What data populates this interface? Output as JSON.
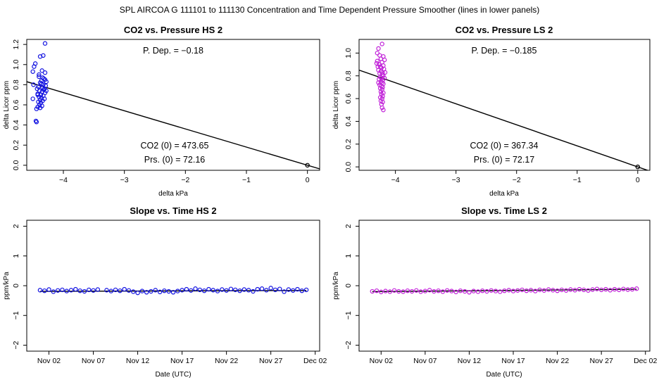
{
  "page_title": "SPL    AIRCOA G    111101 to 111130    Concentration and Time Dependent Pressure Smoother (lines in lower panels)",
  "colors": {
    "hs": "#1010e0",
    "ls": "#c020d8",
    "axis": "#000000",
    "line": "#000000"
  },
  "chart_data": [
    {
      "id": "co2_pressure_hs",
      "type": "scatter",
      "title": "CO2 vs. Pressure HS 2",
      "xlabel": "delta kPa",
      "ylabel": "delta Licor ppm",
      "xlim": [
        -4.6,
        0.2
      ],
      "ylim": [
        -0.05,
        1.25
      ],
      "xticks": [
        -4,
        -3,
        -2,
        -1,
        0
      ],
      "xtick_labels": [
        "−4",
        "−3",
        "−2",
        "−1",
        "0"
      ],
      "yticks": [
        0.0,
        0.2,
        0.4,
        0.6,
        0.8,
        1.0,
        1.2
      ],
      "ytick_labels": [
        "0.0",
        "0.2",
        "0.4",
        "0.6",
        "0.8",
        "1.0",
        "1.2"
      ],
      "color_key": "hs",
      "fit_line": {
        "x": [
          -4.6,
          0.2
        ],
        "y": [
          0.83,
          -0.036
        ]
      },
      "zero_point": {
        "x": 0,
        "y": 0
      },
      "annotations": {
        "pdep": "P. Dep. =  −0.18",
        "co2_0": "CO2 (0) =  473.65",
        "prs_0": "Prs. (0) =  72.16"
      },
      "points": [
        [
          -4.3,
          1.21
        ],
        [
          -4.33,
          1.09
        ],
        [
          -4.38,
          1.08
        ],
        [
          -4.46,
          1.01
        ],
        [
          -4.48,
          0.98
        ],
        [
          -4.5,
          0.93
        ],
        [
          -4.49,
          0.8
        ],
        [
          -4.5,
          0.66
        ],
        [
          -4.42,
          0.7
        ],
        [
          -4.44,
          0.56
        ],
        [
          -4.45,
          0.44
        ],
        [
          -4.44,
          0.43
        ],
        [
          -4.35,
          0.94
        ],
        [
          -4.3,
          0.92
        ],
        [
          -4.4,
          0.88
        ],
        [
          -4.32,
          0.86
        ],
        [
          -4.36,
          0.84
        ],
        [
          -4.28,
          0.83
        ],
        [
          -4.38,
          0.82
        ],
        [
          -4.33,
          0.8
        ],
        [
          -4.29,
          0.79
        ],
        [
          -4.41,
          0.78
        ],
        [
          -4.34,
          0.77
        ],
        [
          -4.31,
          0.76
        ],
        [
          -4.39,
          0.74
        ],
        [
          -4.35,
          0.73
        ],
        [
          -4.3,
          0.72
        ],
        [
          -4.42,
          0.71
        ],
        [
          -4.37,
          0.7
        ],
        [
          -4.33,
          0.69
        ],
        [
          -4.4,
          0.68
        ],
        [
          -4.36,
          0.67
        ],
        [
          -4.31,
          0.66
        ],
        [
          -4.38,
          0.65
        ],
        [
          -4.34,
          0.64
        ],
        [
          -4.41,
          0.63
        ],
        [
          -4.37,
          0.62
        ],
        [
          -4.39,
          0.6
        ],
        [
          -4.35,
          0.59
        ],
        [
          -4.42,
          0.58
        ],
        [
          -4.38,
          0.57
        ],
        [
          -4.32,
          0.75
        ],
        [
          -4.36,
          0.81
        ],
        [
          -4.3,
          0.85
        ],
        [
          -4.4,
          0.9
        ],
        [
          -4.34,
          0.87
        ],
        [
          -4.28,
          0.74
        ],
        [
          -4.43,
          0.76
        ]
      ]
    },
    {
      "id": "co2_pressure_ls",
      "type": "scatter",
      "title": "CO2 vs. Pressure LS 2",
      "xlabel": "delta kPa",
      "ylabel": "delta Licor ppm",
      "xlim": [
        -4.6,
        0.2
      ],
      "ylim": [
        -0.03,
        1.12
      ],
      "xticks": [
        -4,
        -3,
        -2,
        -1,
        0
      ],
      "xtick_labels": [
        "−4",
        "−3",
        "−2",
        "−1",
        "0"
      ],
      "yticks": [
        0.0,
        0.2,
        0.4,
        0.6,
        0.8,
        1.0
      ],
      "ytick_labels": [
        "0.0",
        "0.2",
        "0.4",
        "0.6",
        "0.8",
        "1.0"
      ],
      "color_key": "ls",
      "fit_line": {
        "x": [
          -4.6,
          0.2
        ],
        "y": [
          0.85,
          -0.037
        ]
      },
      "zero_point": {
        "x": 0,
        "y": 0
      },
      "annotations": {
        "pdep": "P. Dep. =  −0.185",
        "co2_0": "CO2 (0) =  367.34",
        "prs_0": "Prs. (0) =  72.17"
      },
      "points": [
        [
          -4.22,
          1.08
        ],
        [
          -4.28,
          1.04
        ],
        [
          -4.3,
          1.0
        ],
        [
          -4.26,
          0.98
        ],
        [
          -4.2,
          0.97
        ],
        [
          -4.24,
          0.95
        ],
        [
          -4.18,
          0.94
        ],
        [
          -4.3,
          0.93
        ],
        [
          -4.22,
          0.92
        ],
        [
          -4.27,
          0.9
        ],
        [
          -4.2,
          0.89
        ],
        [
          -4.25,
          0.88
        ],
        [
          -4.23,
          0.87
        ],
        [
          -4.19,
          0.86
        ],
        [
          -4.28,
          0.85
        ],
        [
          -4.24,
          0.84
        ],
        [
          -4.21,
          0.83
        ],
        [
          -4.26,
          0.82
        ],
        [
          -4.22,
          0.81
        ],
        [
          -4.2,
          0.8
        ],
        [
          -4.25,
          0.79
        ],
        [
          -4.23,
          0.78
        ],
        [
          -4.27,
          0.77
        ],
        [
          -4.21,
          0.76
        ],
        [
          -4.24,
          0.75
        ],
        [
          -4.22,
          0.74
        ],
        [
          -4.2,
          0.73
        ],
        [
          -4.26,
          0.72
        ],
        [
          -4.23,
          0.71
        ],
        [
          -4.21,
          0.7
        ],
        [
          -4.25,
          0.69
        ],
        [
          -4.22,
          0.68
        ],
        [
          -4.24,
          0.66
        ],
        [
          -4.2,
          0.65
        ],
        [
          -4.23,
          0.64
        ],
        [
          -4.21,
          0.62
        ],
        [
          -4.25,
          0.61
        ],
        [
          -4.22,
          0.6
        ],
        [
          -4.24,
          0.58
        ],
        [
          -4.21,
          0.57
        ],
        [
          -4.23,
          0.55
        ],
        [
          -4.22,
          0.52
        ],
        [
          -4.2,
          0.5
        ],
        [
          -4.29,
          0.88
        ],
        [
          -4.31,
          0.91
        ],
        [
          -4.17,
          0.83
        ],
        [
          -4.18,
          0.78
        ],
        [
          -4.28,
          0.74
        ]
      ]
    },
    {
      "id": "slope_time_hs",
      "type": "line",
      "title": "Slope vs. Time HS 2",
      "xlabel": "Date (UTC)",
      "ylabel": "ppm/kPa",
      "xlim": [
        -1.5,
        31.5
      ],
      "ylim": [
        -2.2,
        2.2
      ],
      "xticks": [
        1,
        6,
        11,
        16,
        21,
        26,
        31
      ],
      "xtick_labels": [
        "Nov 02",
        "Nov 07",
        "Nov 12",
        "Nov 17",
        "Nov 22",
        "Nov 27",
        "Dec 02"
      ],
      "yticks": [
        -2,
        -1,
        0,
        1,
        2
      ],
      "ytick_labels": [
        "−2",
        "−1",
        "0",
        "1",
        "2"
      ],
      "color_key": "hs",
      "smoother": {
        "x": [
          0,
          30
        ],
        "y": [
          -0.19,
          -0.16
        ]
      },
      "points": [
        [
          0.0,
          -0.15
        ],
        [
          0.5,
          -0.17
        ],
        [
          1.0,
          -0.13
        ],
        [
          1.5,
          -0.2
        ],
        [
          2.0,
          -0.16
        ],
        [
          2.5,
          -0.14
        ],
        [
          3.0,
          -0.18
        ],
        [
          3.5,
          -0.15
        ],
        [
          4.0,
          -0.12
        ],
        [
          4.5,
          -0.17
        ],
        [
          5.0,
          -0.19
        ],
        [
          5.5,
          -0.14
        ],
        [
          6.0,
          -0.16
        ],
        [
          6.5,
          -0.13
        ],
        [
          7.5,
          -0.15
        ],
        [
          8.0,
          -0.18
        ],
        [
          8.5,
          -0.14
        ],
        [
          9.0,
          -0.17
        ],
        [
          9.5,
          -0.12
        ],
        [
          10.0,
          -0.16
        ],
        [
          10.5,
          -0.2
        ],
        [
          11.0,
          -0.24
        ],
        [
          11.5,
          -0.18
        ],
        [
          12.0,
          -0.22
        ],
        [
          12.5,
          -0.19
        ],
        [
          13.0,
          -0.15
        ],
        [
          13.5,
          -0.21
        ],
        [
          14.0,
          -0.17
        ],
        [
          14.5,
          -0.19
        ],
        [
          15.0,
          -0.22
        ],
        [
          15.5,
          -0.18
        ],
        [
          16.0,
          -0.15
        ],
        [
          16.5,
          -0.12
        ],
        [
          17.0,
          -0.16
        ],
        [
          17.5,
          -0.1
        ],
        [
          18.0,
          -0.14
        ],
        [
          18.5,
          -0.17
        ],
        [
          19.0,
          -0.12
        ],
        [
          19.5,
          -0.15
        ],
        [
          20.0,
          -0.18
        ],
        [
          20.5,
          -0.13
        ],
        [
          21.0,
          -0.16
        ],
        [
          21.5,
          -0.11
        ],
        [
          22.0,
          -0.14
        ],
        [
          22.5,
          -0.17
        ],
        [
          23.0,
          -0.13
        ],
        [
          23.5,
          -0.15
        ],
        [
          24.0,
          -0.19
        ],
        [
          24.5,
          -0.12
        ],
        [
          25.0,
          -0.1
        ],
        [
          25.5,
          -0.15
        ],
        [
          26.0,
          -0.08
        ],
        [
          26.5,
          -0.14
        ],
        [
          27.0,
          -0.11
        ],
        [
          27.5,
          -0.2
        ],
        [
          28.0,
          -0.13
        ],
        [
          28.5,
          -0.16
        ],
        [
          29.0,
          -0.12
        ],
        [
          29.5,
          -0.17
        ],
        [
          30.0,
          -0.14
        ]
      ]
    },
    {
      "id": "slope_time_ls",
      "type": "line",
      "title": "Slope vs. Time LS 2",
      "xlabel": "Date (UTC)",
      "ylabel": "ppm/kPa",
      "xlim": [
        -1.5,
        31.5
      ],
      "ylim": [
        -2.2,
        2.2
      ],
      "xticks": [
        1,
        6,
        11,
        16,
        21,
        26,
        31
      ],
      "xtick_labels": [
        "Nov 02",
        "Nov 07",
        "Nov 12",
        "Nov 17",
        "Nov 22",
        "Nov 27",
        "Dec 02"
      ],
      "yticks": [
        -2,
        -1,
        0,
        1,
        2
      ],
      "ytick_labels": [
        "−2",
        "−1",
        "0",
        "1",
        "2"
      ],
      "color_key": "ls",
      "smoother": {
        "x": [
          0,
          30
        ],
        "y": [
          -0.2,
          -0.12
        ]
      },
      "points": [
        [
          0.0,
          -0.19
        ],
        [
          0.5,
          -0.17
        ],
        [
          1.0,
          -0.21
        ],
        [
          1.5,
          -0.18
        ],
        [
          2.0,
          -0.2
        ],
        [
          2.5,
          -0.16
        ],
        [
          3.0,
          -0.19
        ],
        [
          3.5,
          -0.2
        ],
        [
          4.0,
          -0.17
        ],
        [
          4.5,
          -0.19
        ],
        [
          5.0,
          -0.16
        ],
        [
          5.5,
          -0.2
        ],
        [
          6.0,
          -0.18
        ],
        [
          6.5,
          -0.15
        ],
        [
          7.0,
          -0.19
        ],
        [
          7.5,
          -0.17
        ],
        [
          8.0,
          -0.2
        ],
        [
          8.5,
          -0.16
        ],
        [
          9.0,
          -0.18
        ],
        [
          9.5,
          -0.21
        ],
        [
          10.0,
          -0.17
        ],
        [
          10.5,
          -0.19
        ],
        [
          11.0,
          -0.22
        ],
        [
          11.5,
          -0.18
        ],
        [
          12.0,
          -0.2
        ],
        [
          12.5,
          -0.17
        ],
        [
          13.0,
          -0.19
        ],
        [
          13.5,
          -0.16
        ],
        [
          14.0,
          -0.18
        ],
        [
          14.5,
          -0.2
        ],
        [
          15.0,
          -0.17
        ],
        [
          15.5,
          -0.15
        ],
        [
          16.0,
          -0.18
        ],
        [
          16.5,
          -0.16
        ],
        [
          17.0,
          -0.14
        ],
        [
          17.5,
          -0.17
        ],
        [
          18.0,
          -0.15
        ],
        [
          18.5,
          -0.18
        ],
        [
          19.0,
          -0.14
        ],
        [
          19.5,
          -0.16
        ],
        [
          20.0,
          -0.13
        ],
        [
          20.5,
          -0.15
        ],
        [
          21.0,
          -0.17
        ],
        [
          21.5,
          -0.14
        ],
        [
          22.0,
          -0.16
        ],
        [
          22.5,
          -0.13
        ],
        [
          23.0,
          -0.15
        ],
        [
          23.5,
          -0.12
        ],
        [
          24.0,
          -0.14
        ],
        [
          24.5,
          -0.16
        ],
        [
          25.0,
          -0.13
        ],
        [
          25.5,
          -0.11
        ],
        [
          26.0,
          -0.14
        ],
        [
          26.5,
          -0.12
        ],
        [
          27.0,
          -0.15
        ],
        [
          27.5,
          -0.12
        ],
        [
          28.0,
          -0.14
        ],
        [
          28.5,
          -0.11
        ],
        [
          29.0,
          -0.13
        ],
        [
          29.5,
          -0.12
        ],
        [
          30.0,
          -0.1
        ]
      ]
    }
  ]
}
